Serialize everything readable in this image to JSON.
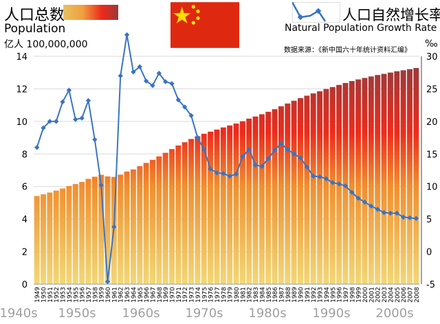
{
  "legend": {
    "population_cn": "人口总数",
    "population_en": "Population",
    "population_unit": "亿人 100,000,000",
    "growth_cn": "人口自然增长率",
    "growth_en": "Natural Population Growth Rate",
    "growth_unit": "‰",
    "source": "数据来源：《新中国六十年统计资料汇编》"
  },
  "colors": {
    "bar_bottom": "#f0d070",
    "bar_mid": "#ee2a1a",
    "bar_top": "#9a3a3a",
    "line": "#3a74c0",
    "flag_red": "#de2910",
    "flag_yellow": "#ffde00"
  },
  "chart_data": {
    "type": "bar+line",
    "categories": [
      "1949",
      "1950",
      "1951",
      "1952",
      "1953",
      "1954",
      "1955",
      "1956",
      "1957",
      "1958",
      "1959",
      "1960",
      "1961",
      "1962",
      "1963",
      "1964",
      "1965",
      "1966",
      "1967",
      "1968",
      "1969",
      "1970",
      "1971",
      "1972",
      "1973",
      "1974",
      "1975",
      "1976",
      "1977",
      "1978",
      "1979",
      "1980",
      "1981",
      "1982",
      "1983",
      "1984",
      "1985",
      "1986",
      "1987",
      "1988",
      "1989",
      "1990",
      "1991",
      "1992",
      "1993",
      "1994",
      "1995",
      "1996",
      "1997",
      "1998",
      "1999",
      "2000",
      "2001",
      "2002",
      "2003",
      "2004",
      "2005",
      "2006",
      "2007",
      "2008"
    ],
    "decades": [
      "1940s",
      "1950s",
      "1960s",
      "1970s",
      "1980s",
      "1990s",
      "2000s"
    ],
    "series": [
      {
        "name": "Population",
        "type": "bar",
        "axis": "left",
        "values": [
          5.42,
          5.52,
          5.63,
          5.75,
          5.88,
          6.03,
          6.15,
          6.28,
          6.47,
          6.6,
          6.72,
          6.62,
          6.59,
          6.73,
          6.92,
          7.05,
          7.25,
          7.45,
          7.64,
          7.85,
          8.07,
          8.3,
          8.52,
          8.72,
          8.92,
          9.09,
          9.24,
          9.37,
          9.5,
          9.63,
          9.75,
          9.87,
          10.01,
          10.17,
          10.3,
          10.44,
          10.59,
          10.75,
          10.93,
          11.1,
          11.27,
          11.43,
          11.58,
          11.72,
          11.85,
          11.99,
          12.11,
          12.24,
          12.36,
          12.48,
          12.58,
          12.67,
          12.76,
          12.85,
          12.92,
          13.0,
          13.08,
          13.14,
          13.21,
          13.28
        ]
      },
      {
        "name": "Natural Population Growth Rate",
        "type": "line",
        "axis": "right",
        "values": [
          16.0,
          19.0,
          20.0,
          20.0,
          23.0,
          24.8,
          20.3,
          20.5,
          23.2,
          17.2,
          10.2,
          -4.6,
          3.8,
          27.0,
          33.3,
          27.6,
          28.4,
          26.2,
          25.5,
          27.4,
          26.1,
          25.8,
          23.3,
          22.2,
          20.9,
          17.5,
          15.7,
          12.7,
          12.1,
          12.0,
          11.6,
          11.9,
          14.6,
          15.7,
          13.3,
          13.1,
          14.3,
          15.6,
          16.6,
          15.7,
          15.0,
          14.4,
          13.0,
          11.6,
          11.5,
          11.2,
          10.6,
          10.4,
          10.1,
          9.1,
          8.2,
          7.6,
          7.0,
          6.5,
          6.0,
          5.9,
          5.9,
          5.3,
          5.2,
          5.1
        ]
      }
    ],
    "ylim_left": [
      0,
      14
    ],
    "yticks_left": [
      "0",
      "2",
      "4",
      "6",
      "8",
      "10",
      "12",
      "14"
    ],
    "ylim_right": [
      -5,
      30
    ],
    "yticks_right": [
      "-5",
      "0",
      "5",
      "10",
      "15",
      "20",
      "25",
      "30"
    ],
    "grid": true
  }
}
